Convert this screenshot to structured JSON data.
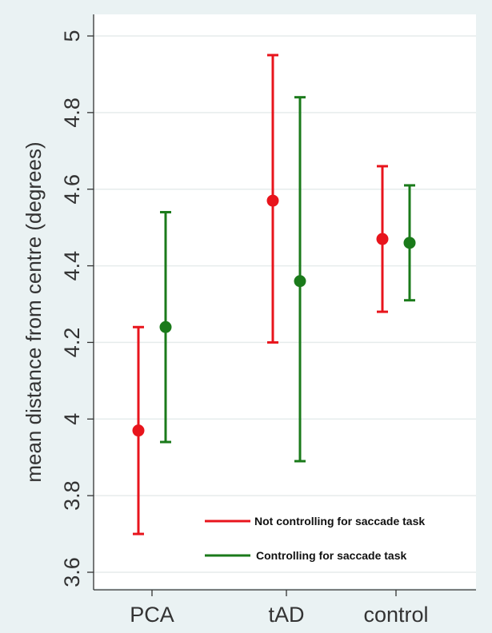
{
  "chart_data": {
    "type": "scatter",
    "chart_kind": "point estimates with error bars",
    "ylabel": "mean distance from centre (degrees)",
    "xlabel": "",
    "ylim": [
      3.6,
      5.0
    ],
    "yticks": [
      "3.6",
      "3.8",
      "4",
      "4.2",
      "4.4",
      "4.6",
      "4.8",
      "5"
    ],
    "categories": [
      "PCA",
      "tAD",
      "control"
    ],
    "grid": true,
    "legend_position": "bottom-right",
    "series": [
      {
        "name": "Not controlling for saccade task",
        "color": "#e8141c",
        "points": [
          {
            "category": "PCA",
            "mean": 3.97,
            "lower": 3.7,
            "upper": 4.24
          },
          {
            "category": "tAD",
            "mean": 4.57,
            "lower": 4.2,
            "upper": 4.95
          },
          {
            "category": "control",
            "mean": 4.47,
            "lower": 4.28,
            "upper": 4.66
          }
        ]
      },
      {
        "name": "Controlling for saccade task",
        "color": "#1a7a1a",
        "points": [
          {
            "category": "PCA",
            "mean": 4.24,
            "lower": 3.94,
            "upper": 4.54
          },
          {
            "category": "tAD",
            "mean": 4.36,
            "lower": 3.89,
            "upper": 4.84
          },
          {
            "category": "control",
            "mean": 4.46,
            "lower": 4.31,
            "upper": 4.61
          }
        ]
      }
    ]
  }
}
